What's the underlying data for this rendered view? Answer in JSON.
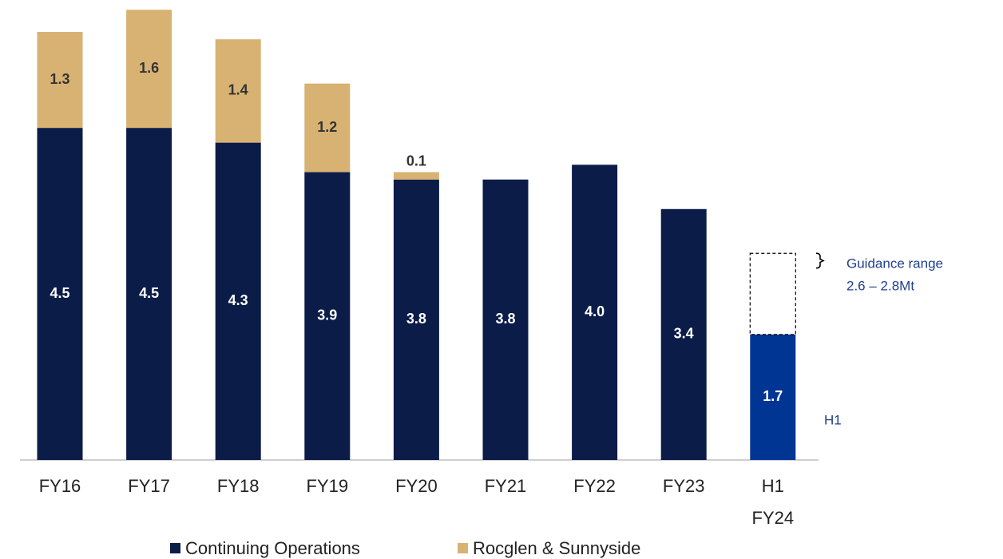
{
  "chart_data": {
    "type": "stacked_bar",
    "categories": [
      "FY16",
      "FY17",
      "FY18",
      "FY19",
      "FY20",
      "FY21",
      "FY22",
      "FY23",
      "H1\nFY24"
    ],
    "series": [
      {
        "name": "Continuing Operations",
        "color": "#0b1c48",
        "colors": [
          "#0b1c48",
          "#0b1c48",
          "#0b1c48",
          "#0b1c48",
          "#0b1c48",
          "#0b1c48",
          "#0b1c48",
          "#0b1c48",
          "#003594"
        ],
        "values": [
          4.5,
          4.5,
          4.3,
          3.9,
          3.8,
          3.8,
          4.0,
          3.4,
          1.7
        ],
        "value_labels": [
          "4.5",
          "4.5",
          "4.3",
          "3.9",
          "3.8",
          "3.8",
          "4.0",
          "3.4",
          "1.7"
        ]
      },
      {
        "name": "Rocglen & Sunnyside",
        "color": "#d8b273",
        "values": [
          1.3,
          1.6,
          1.4,
          1.2,
          0.1,
          null,
          null,
          null,
          null
        ],
        "value_labels": [
          "1.3",
          "1.6",
          "1.4",
          "1.2",
          "0.1",
          null,
          null,
          null,
          null
        ]
      }
    ],
    "ylim": [
      0,
      6.2
    ],
    "guidance": {
      "low": 2.6,
      "high": 2.8,
      "label": [
        "Guidance range",
        "2.6 – 2.8Mt"
      ]
    },
    "annotations": [
      "H1"
    ],
    "legend": "bottom"
  }
}
